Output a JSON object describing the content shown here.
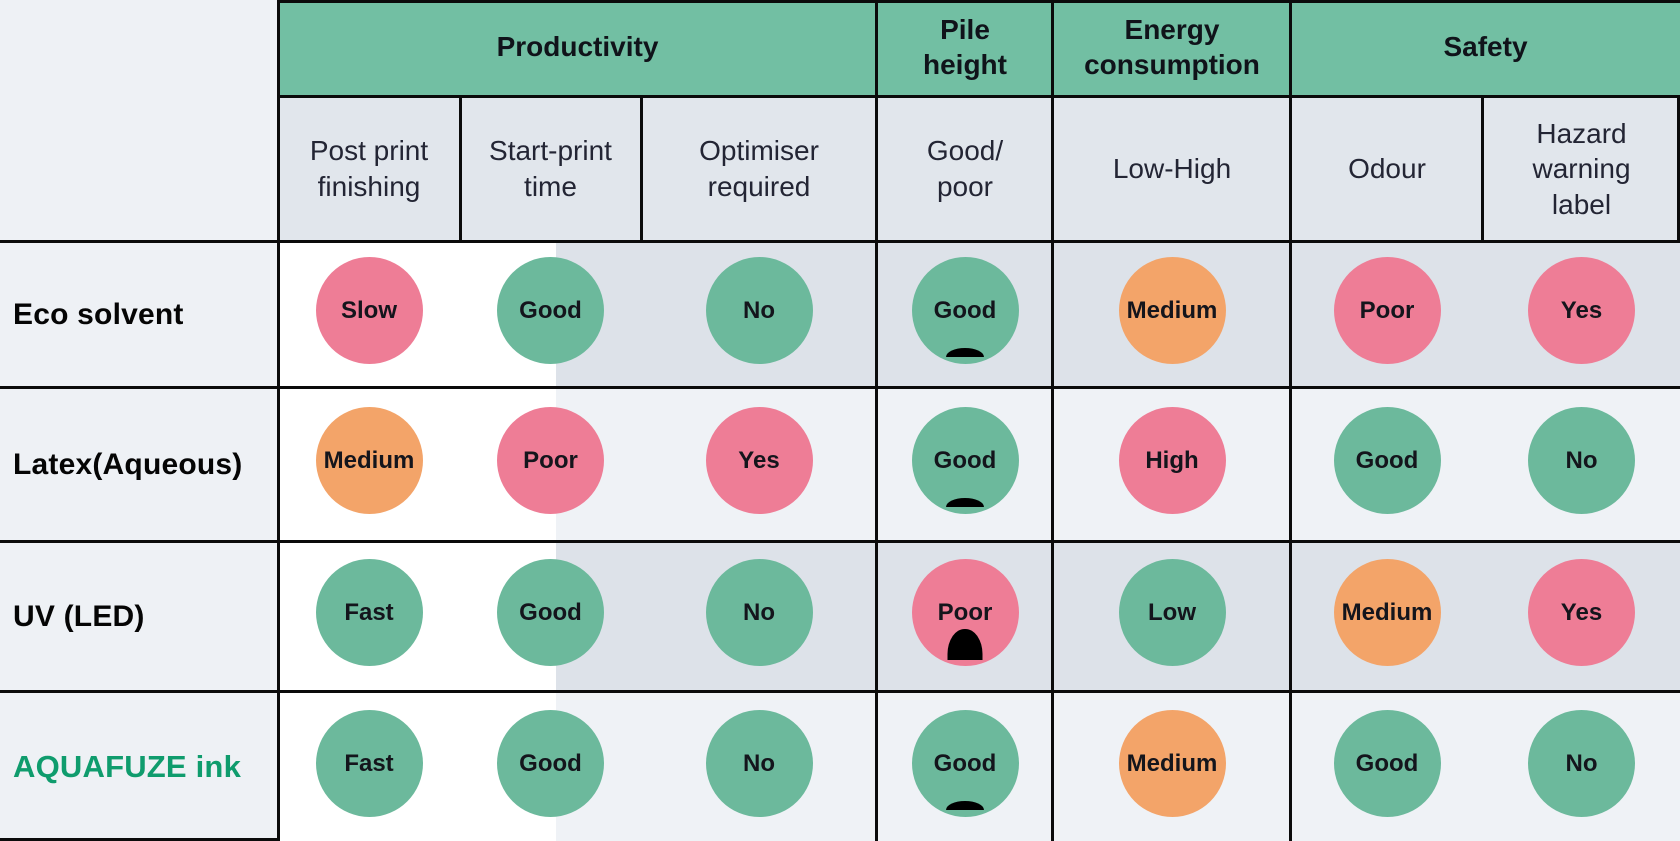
{
  "table": {
    "column_groups": [
      {
        "label": "Productivity"
      },
      {
        "label": "Pile\nheight"
      },
      {
        "label": "Energy\nconsumption"
      },
      {
        "label": "Safety"
      }
    ],
    "subheaders": [
      {
        "label": "Post print\nfinishing"
      },
      {
        "label": "Start-print\ntime"
      },
      {
        "label": "Optimiser\nrequired"
      },
      {
        "label": "Good/\npoor"
      },
      {
        "label": "Low-High"
      },
      {
        "label": "Odour"
      },
      {
        "label": "Hazard\nwarning\nlabel"
      }
    ],
    "rows": [
      {
        "label": "Eco solvent",
        "highlight": false,
        "cells": [
          {
            "text": "Slow",
            "status": "bad"
          },
          {
            "text": "Good",
            "status": "good"
          },
          {
            "text": "No",
            "status": "good"
          },
          {
            "text": "Good",
            "status": "good",
            "pile": "low"
          },
          {
            "text": "Medium",
            "status": "medium"
          },
          {
            "text": "Poor",
            "status": "bad"
          },
          {
            "text": "Yes",
            "status": "bad"
          }
        ]
      },
      {
        "label": "Latex(Aqueous)",
        "highlight": false,
        "cells": [
          {
            "text": "Medium",
            "status": "medium"
          },
          {
            "text": "Poor",
            "status": "bad"
          },
          {
            "text": "Yes",
            "status": "bad"
          },
          {
            "text": "Good",
            "status": "good",
            "pile": "low"
          },
          {
            "text": "High",
            "status": "bad"
          },
          {
            "text": "Good",
            "status": "good"
          },
          {
            "text": "No",
            "status": "good"
          }
        ]
      },
      {
        "label": "UV (LED)",
        "highlight": false,
        "cells": [
          {
            "text": "Fast",
            "status": "good"
          },
          {
            "text": "Good",
            "status": "good"
          },
          {
            "text": "No",
            "status": "good"
          },
          {
            "text": "Poor",
            "status": "bad",
            "pile": "high"
          },
          {
            "text": "Low",
            "status": "good"
          },
          {
            "text": "Medium",
            "status": "medium"
          },
          {
            "text": "Yes",
            "status": "bad"
          }
        ]
      },
      {
        "label": "AQUAFUZE ink",
        "highlight": true,
        "cells": [
          {
            "text": "Fast",
            "status": "good"
          },
          {
            "text": "Good",
            "status": "good"
          },
          {
            "text": "No",
            "status": "good"
          },
          {
            "text": "Good",
            "status": "good",
            "pile": "low"
          },
          {
            "text": "Medium",
            "status": "medium"
          },
          {
            "text": "Good",
            "status": "good"
          },
          {
            "text": "No",
            "status": "good"
          }
        ]
      }
    ],
    "colors": {
      "header_green": "#72bfa3",
      "good_circle": "#6cb99c",
      "bad_circle": "#ee7d96",
      "medium_circle": "#f3a469",
      "highlight_label_green": "#0f9c6d",
      "row_gray": "#dde2e9",
      "row_light": "#eff2f6",
      "subheader_bg": "#e1e6ec",
      "label_col_bg": "#eef1f5"
    }
  }
}
